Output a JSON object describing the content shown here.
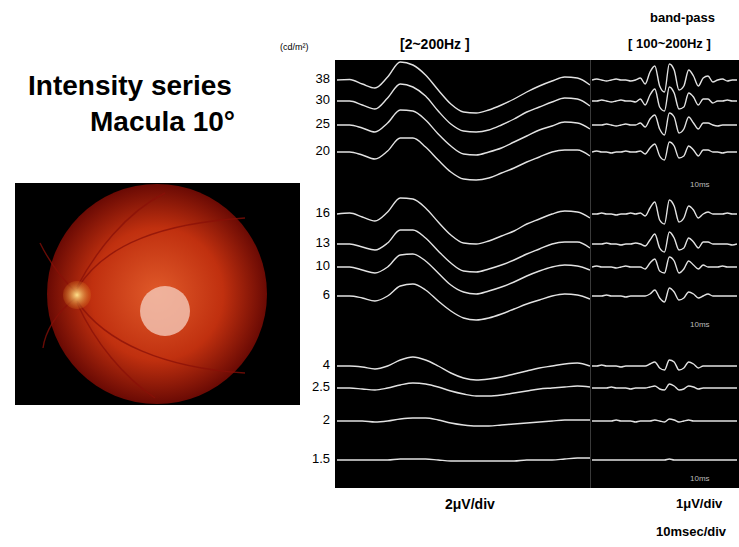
{
  "title": "Intensity series",
  "subtitle": "Macula 10°",
  "series_label": "(cd/m²)",
  "chart_data": [
    {
      "type": "line",
      "title": "[2~200Hz ]",
      "ylabel": "2μV/div",
      "tick_labels": false,
      "color": "#e2e2e2",
      "x": [
        0,
        5,
        10,
        15,
        20,
        25,
        30,
        35,
        40,
        45,
        50,
        55,
        60,
        65,
        70,
        75,
        80,
        85,
        90,
        95,
        100
      ],
      "xlim": [
        0,
        100
      ],
      "ylim": [
        -5,
        5
      ],
      "series": [
        {
          "name": "38",
          "values": [
            0,
            0.05,
            -0.4,
            -0.8,
            0.3,
            1.8,
            1.5,
            0.5,
            -1.0,
            -2.4,
            -3.2,
            -3.3,
            -3.0,
            -2.5,
            -1.9,
            -1.2,
            -0.6,
            -0.1,
            0.3,
            0.2,
            -0.5
          ]
        },
        {
          "name": "30",
          "values": [
            0,
            0,
            -0.4,
            -0.8,
            0.3,
            1.7,
            1.4,
            0.5,
            -1.0,
            -2.3,
            -3.0,
            -3.1,
            -2.9,
            -2.4,
            -1.8,
            -1.1,
            -0.6,
            -0.1,
            0.3,
            0.2,
            -0.5
          ]
        },
        {
          "name": "25",
          "values": [
            0,
            0,
            -0.3,
            -0.7,
            0.2,
            1.5,
            1.4,
            0.5,
            -0.9,
            -2.1,
            -2.9,
            -3.0,
            -2.7,
            -2.3,
            -1.7,
            -1.1,
            -0.5,
            -0.1,
            0.3,
            0.2,
            -0.4
          ]
        },
        {
          "name": "20",
          "values": [
            0,
            0,
            -0.3,
            -0.7,
            0.1,
            1.4,
            1.4,
            0.5,
            -0.8,
            -2.0,
            -2.7,
            -2.8,
            -2.6,
            -2.1,
            -1.6,
            -1.0,
            -0.5,
            0,
            0.2,
            0.2,
            -0.4
          ]
        },
        {
          "name": "16",
          "values": [
            0,
            0.1,
            -0.3,
            -0.7,
            0.2,
            1.6,
            1.5,
            0.6,
            -0.8,
            -2.1,
            -2.9,
            -3.0,
            -2.7,
            -2.2,
            -1.7,
            -1.0,
            -0.5,
            0,
            0.3,
            0.2,
            -0.4
          ]
        },
        {
          "name": "13",
          "values": [
            0,
            0,
            -0.3,
            -0.6,
            0.1,
            1.4,
            1.4,
            0.6,
            -0.7,
            -1.9,
            -2.7,
            -2.8,
            -2.5,
            -2.1,
            -1.6,
            -1.0,
            -0.5,
            0,
            0.2,
            0.2,
            -0.4
          ]
        },
        {
          "name": "10",
          "values": [
            0,
            0,
            -0.3,
            -0.6,
            0,
            1.2,
            1.3,
            0.6,
            -0.6,
            -1.8,
            -2.5,
            -2.7,
            -2.4,
            -2.0,
            -1.5,
            -0.9,
            -0.4,
            0,
            0.2,
            0.1,
            -0.3
          ]
        },
        {
          "name": "6",
          "values": [
            0,
            0,
            -0.2,
            -0.5,
            0,
            1.0,
            1.2,
            0.6,
            -0.5,
            -1.5,
            -2.2,
            -2.4,
            -2.2,
            -1.8,
            -1.3,
            -0.8,
            -0.4,
            0,
            0.2,
            0.1,
            -0.3
          ]
        },
        {
          "name": "4",
          "values": [
            0,
            0,
            -0.1,
            -0.3,
            0,
            0.6,
            0.9,
            0.6,
            0,
            -0.7,
            -1.2,
            -1.4,
            -1.3,
            -1.1,
            -0.8,
            -0.5,
            -0.2,
            0,
            0.2,
            0.3,
            0
          ]
        },
        {
          "name": "2.5",
          "values": [
            0,
            0,
            -0.1,
            -0.2,
            0,
            0.3,
            0.5,
            0.4,
            0.1,
            -0.3,
            -0.6,
            -0.8,
            -0.8,
            -0.7,
            -0.5,
            -0.3,
            -0.1,
            0,
            0.1,
            0.2,
            0.1
          ]
        },
        {
          "name": "2",
          "values": [
            0,
            0,
            0,
            -0.1,
            0,
            0.2,
            0.3,
            0.3,
            0.1,
            -0.2,
            -0.4,
            -0.5,
            -0.5,
            -0.4,
            -0.3,
            -0.2,
            -0.1,
            0,
            0.1,
            0.1,
            0.1
          ]
        },
        {
          "name": "1.5",
          "values": [
            0,
            0,
            0,
            0,
            0,
            0.1,
            0.1,
            0.1,
            0,
            -0.1,
            -0.1,
            -0.1,
            -0.1,
            -0.1,
            -0.1,
            0,
            0,
            0,
            0.1,
            0.2,
            0.2
          ]
        }
      ]
    },
    {
      "type": "line",
      "title": "band-pass",
      "subtitle": "[ 100~200Hz ]",
      "ylabel": "1μV/div",
      "xlabel": "10msec/div",
      "annotation": "10ms",
      "tick_labels": false,
      "color": "#e2e2e2",
      "x": [
        0,
        2,
        4,
        6,
        8,
        10,
        12,
        14,
        16,
        18,
        20,
        22,
        24,
        26,
        28,
        30,
        32,
        34,
        36,
        38,
        40,
        42,
        44,
        46,
        48,
        50,
        52,
        54,
        56,
        58,
        60
      ],
      "xlim": [
        0,
        60
      ],
      "ylim": [
        -2,
        2
      ],
      "series": [
        {
          "name": "38",
          "values": [
            0,
            0.05,
            0,
            -0.05,
            0,
            0.05,
            0,
            0,
            -0.05,
            0,
            0.1,
            -0.2,
            0.4,
            0.7,
            -0.3,
            -0.6,
            0.8,
            0.5,
            -0.5,
            -0.3,
            0.5,
            0.2,
            -0.3,
            0.1,
            0.2,
            -0.1,
            0,
            0.05,
            -0.05,
            0,
            0
          ]
        },
        {
          "name": "30",
          "values": [
            0,
            0,
            0.05,
            0,
            -0.05,
            0,
            0.05,
            0,
            0,
            -0.05,
            0.1,
            -0.2,
            0.3,
            0.6,
            -0.3,
            -0.5,
            0.7,
            0.4,
            -0.4,
            -0.3,
            0.4,
            0.2,
            -0.2,
            0.1,
            0.1,
            -0.1,
            0,
            0,
            0.05,
            0,
            0
          ]
        },
        {
          "name": "25",
          "values": [
            0,
            0,
            0,
            0.05,
            0,
            -0.05,
            0,
            0.05,
            0,
            0,
            0.1,
            -0.1,
            0.3,
            0.5,
            -0.2,
            -0.5,
            0.6,
            0.4,
            -0.4,
            -0.2,
            0.4,
            0.1,
            -0.2,
            0.1,
            0.1,
            0,
            -0.05,
            0,
            0,
            0,
            0
          ]
        },
        {
          "name": "20",
          "values": [
            0,
            0.05,
            0,
            0,
            -0.05,
            0,
            0,
            0.05,
            0,
            0,
            0.05,
            -0.1,
            0.2,
            0.4,
            -0.2,
            -0.4,
            0.5,
            0.3,
            -0.3,
            -0.2,
            0.3,
            0.1,
            -0.2,
            0.1,
            0.1,
            0,
            0,
            -0.05,
            0,
            0,
            0
          ]
        },
        {
          "name": "16",
          "values": [
            0,
            0,
            0.05,
            0,
            0,
            -0.05,
            0,
            0,
            0.05,
            0,
            0.05,
            -0.1,
            0.3,
            0.6,
            -0.3,
            -0.5,
            0.7,
            0.4,
            -0.4,
            -0.2,
            0.4,
            0.2,
            -0.2,
            0,
            0.1,
            0,
            0,
            0,
            0.05,
            0,
            0
          ]
        },
        {
          "name": "13",
          "values": [
            0,
            0,
            0,
            0.05,
            0,
            0,
            -0.05,
            0,
            0,
            0.05,
            0,
            -0.1,
            0.2,
            0.5,
            -0.2,
            -0.4,
            0.6,
            0.3,
            -0.3,
            -0.2,
            0.3,
            0.1,
            -0.2,
            0.1,
            0.1,
            0,
            0,
            0,
            0,
            -0.05,
            0
          ]
        },
        {
          "name": "10",
          "values": [
            0,
            0.05,
            0,
            0,
            0,
            -0.05,
            0,
            0.05,
            0,
            0,
            0,
            -0.1,
            0.2,
            0.4,
            -0.2,
            -0.3,
            0.5,
            0.3,
            -0.3,
            -0.1,
            0.3,
            0.1,
            -0.1,
            0.1,
            0,
            0,
            0,
            0.05,
            0,
            0,
            0
          ]
        },
        {
          "name": "6",
          "values": [
            0,
            0,
            0,
            0.05,
            0,
            0,
            0,
            -0.05,
            0,
            0,
            0,
            0,
            0.1,
            0.3,
            -0.1,
            -0.3,
            0.4,
            0.2,
            -0.2,
            -0.1,
            0.2,
            0.1,
            -0.1,
            0,
            0.1,
            0,
            0,
            0,
            0,
            0,
            0
          ]
        },
        {
          "name": "4",
          "values": [
            0,
            0,
            0.05,
            0,
            0,
            0,
            -0.05,
            0,
            0,
            0,
            0,
            0,
            0.1,
            0.2,
            -0.1,
            -0.2,
            0.3,
            0.2,
            -0.2,
            -0.1,
            0.2,
            0.1,
            -0.1,
            0,
            0,
            0,
            0,
            0,
            0,
            0,
            0
          ]
        },
        {
          "name": "2.5",
          "values": [
            0,
            0,
            0,
            0,
            0.05,
            0,
            0,
            0,
            -0.05,
            0,
            0,
            0,
            0.05,
            0.1,
            -0.05,
            -0.1,
            0.2,
            0.1,
            -0.1,
            -0.05,
            0.1,
            0.05,
            -0.05,
            0,
            0,
            0,
            0,
            0,
            0,
            0,
            0
          ]
        },
        {
          "name": "2",
          "values": [
            0,
            0,
            0,
            0,
            0,
            0.05,
            0,
            0,
            0,
            -0.05,
            0,
            0,
            0,
            0.05,
            0,
            -0.05,
            0.1,
            0.05,
            -0.05,
            0,
            0.05,
            0,
            0,
            0,
            0,
            0,
            0,
            0,
            0,
            0,
            0
          ]
        },
        {
          "name": "1.5",
          "values": [
            0,
            0,
            0,
            0,
            0,
            0,
            0,
            0,
            0,
            0,
            0,
            0,
            0,
            0,
            0,
            0,
            0.05,
            0,
            0,
            0,
            0,
            0,
            0,
            0,
            0,
            0,
            0,
            0,
            0,
            0,
            0
          ]
        }
      ]
    }
  ]
}
